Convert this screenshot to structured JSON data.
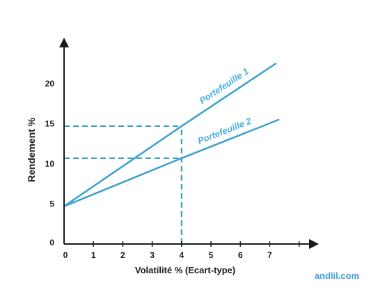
{
  "chart_data": {
    "type": "line",
    "xlabel": "Volatilité % (Ecart-type)",
    "ylabel": "Rendement %",
    "x_ticks": [
      0,
      1,
      2,
      3,
      4,
      5,
      6,
      7
    ],
    "y_ticks": [
      0,
      5,
      10,
      15,
      20
    ],
    "xlim": [
      0,
      8
    ],
    "ylim": [
      0,
      23
    ],
    "grid": false,
    "series": [
      {
        "name": "Portefeuille 1",
        "x": [
          0,
          4,
          7.2
        ],
        "y": [
          4.7,
          14.7,
          22.5
        ]
      },
      {
        "name": "Portefeuille 2",
        "x": [
          0,
          4,
          7.3
        ],
        "y": [
          4.7,
          10.7,
          15.5
        ]
      }
    ],
    "reference_lines": [
      {
        "style": "dashed",
        "from": [
          0,
          14.7
        ],
        "to": [
          4,
          14.7
        ]
      },
      {
        "style": "dashed",
        "from": [
          0,
          10.7
        ],
        "to": [
          4,
          10.7
        ]
      },
      {
        "style": "dashed",
        "from": [
          4,
          0
        ],
        "to": [
          4,
          14.7
        ]
      }
    ]
  },
  "colors": {
    "line": "#3a9fcf",
    "dashed": "#3aa0c0",
    "axis": "#1a1a1a",
    "label": "#4ab0dd"
  },
  "watermark": "andlil.com"
}
